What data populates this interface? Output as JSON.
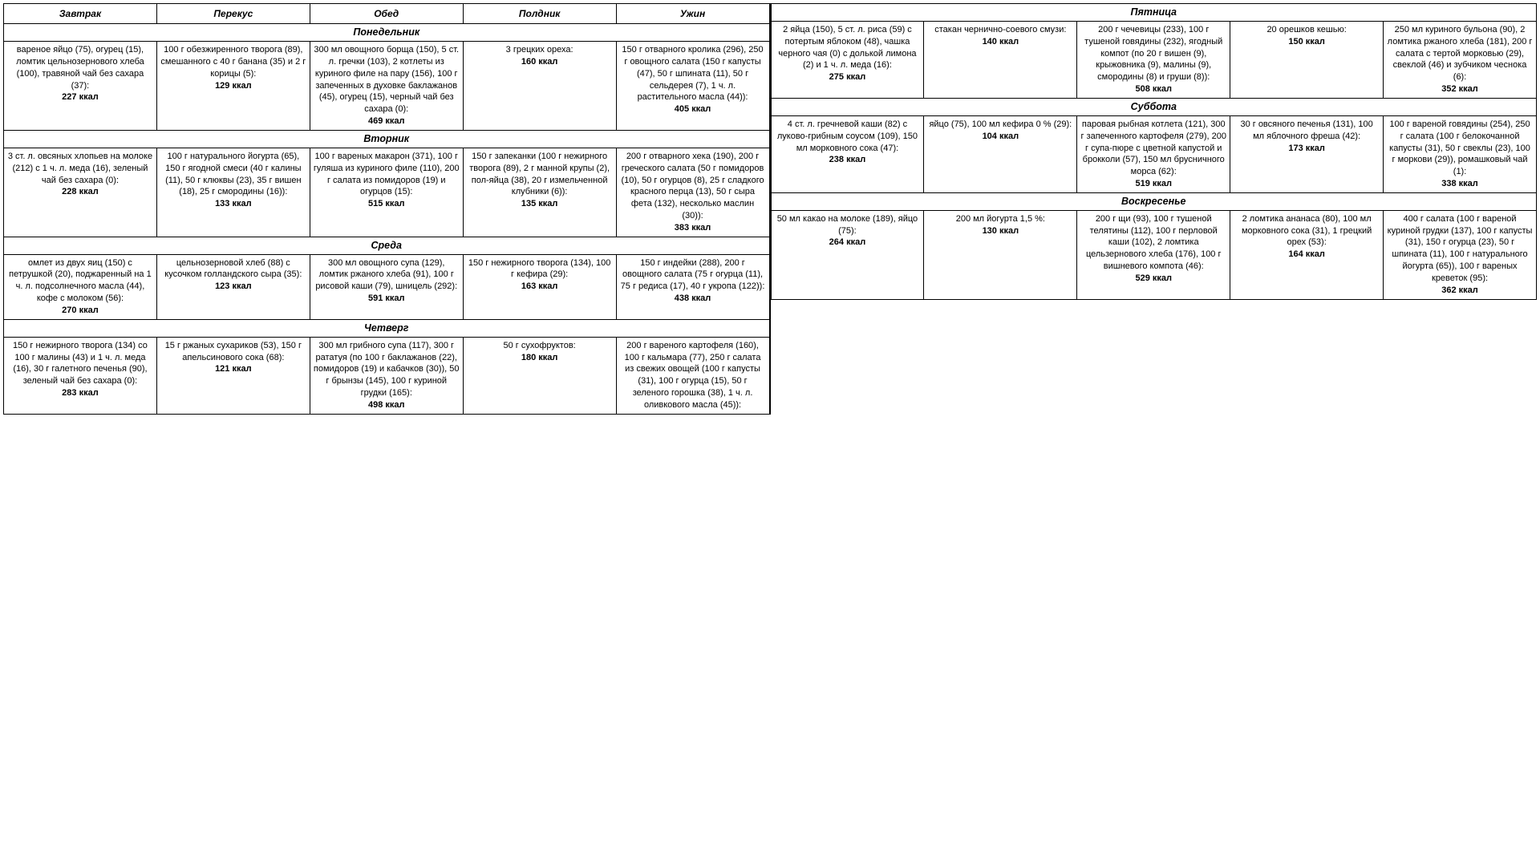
{
  "styling": {
    "font_family": "Arial",
    "base_font_size_pt": 8.5,
    "header_font_size_pt": 9,
    "day_font_size_pt": 9.5,
    "border_color": "#000000",
    "background_color": "#ffffff",
    "text_color": "#000000",
    "column_count": 5,
    "kcal_bold": true,
    "header_italic": true,
    "header_bold": true
  },
  "columns": [
    "Завтрак",
    "Перекус",
    "Обед",
    "Полдник",
    "Ужин"
  ],
  "left_days": [
    {
      "day": "Понедельник",
      "meals": [
        {
          "text": "вареное яйцо (75), огурец (15), ломтик цельнозернового хлеба (100), травяной чай без сахара (37):",
          "kcal": "227 ккал"
        },
        {
          "text": "100 г обезжиренного творога (89), смешанного с 40 г банана (35) и 2 г корицы (5):",
          "kcal": "129 ккал"
        },
        {
          "text": "300 мл овощного борща (150), 5 ст. л. гречки (103), 2 котлеты из куриного филе на пару (156), 100 г запеченных в духовке баклажанов (45), огурец (15), черный чай без сахара (0):",
          "kcal": "469 ккал"
        },
        {
          "text": "3 грецких ореха:",
          "kcal": "160 ккал"
        },
        {
          "text": "150 г отварного кролика (296), 250 г овощного салата (150 г капусты (47), 50 г шпината (11), 50 г сельдерея (7), 1 ч. л. растительного масла (44)):",
          "kcal": "405 ккал"
        }
      ]
    },
    {
      "day": "Вторник",
      "meals": [
        {
          "text": "3 ст. л. овсяных хлопьев на молоке (212) с 1 ч. л. меда (16), зеленый чай без сахара (0):",
          "kcal": "228 ккал"
        },
        {
          "text": "100 г натурального йогурта (65), 150 г ягодной смеси (40 г калины (11), 50 г клюквы (23), 35 г вишен (18), 25 г смородины (16)):",
          "kcal": "133 ккал"
        },
        {
          "text": "100 г вареных макарон (371), 100 г гуляша из куриного филе (110), 200 г салата из помидоров (19) и огурцов (15):",
          "kcal": "515 ккал"
        },
        {
          "text": "150 г запеканки (100 г нежирного творога (89), 2 г манной крупы (2), пол-яйца (38), 20 г измельченной клубники (6)):",
          "kcal": "135 ккал"
        },
        {
          "text": "200 г отварного хека (190), 200 г греческого салата (50 г помидоров (10), 50 г огурцов (8), 25 г сладкого красного перца (13), 50 г сыра фета (132), несколько маслин (30)):",
          "kcal": "383 ккал"
        }
      ]
    },
    {
      "day": "Среда",
      "meals": [
        {
          "text": "омлет из двух яиц (150) с петрушкой (20), поджаренный на 1 ч. л. подсолнечного масла (44), кофе с молоком (56):",
          "kcal": "270 ккал"
        },
        {
          "text": "цельнозерновой хлеб (88) с кусочком голландского сыра (35):",
          "kcal": "123 ккал"
        },
        {
          "text": "300 мл овощного супа (129), ломтик ржаного хлеба (91), 100 г рисовой каши (79), шницель (292):",
          "kcal": "591 ккал"
        },
        {
          "text": "150 г нежирного творога (134), 100 г кефира (29):",
          "kcal": "163 ккал"
        },
        {
          "text": "150 г индейки (288), 200 г овощного салата (75 г огурца (11), 75 г редиса (17), 40 г укропа (122)):",
          "kcal": "438 ккал"
        }
      ]
    },
    {
      "day": "Четверг",
      "meals": [
        {
          "text": "150 г нежирного творога (134) со 100 г малины (43) и 1 ч. л. меда (16), 30 г галетного печенья (90), зеленый чай без сахара (0):",
          "kcal": "283 ккал"
        },
        {
          "text": "15 г ржаных сухариков (53), 150 г апельсинового сока (68):",
          "kcal": "121 ккал"
        },
        {
          "text": "300 мл грибного супа (117), 300 г рататуя (по 100 г баклажанов (22), помидоров (19) и кабачков (30)), 50 г брынзы (145), 100 г куриной грудки (165):",
          "kcal": "498 ккал"
        },
        {
          "text": "50 г сухофруктов:",
          "kcal": "180 ккал"
        },
        {
          "text": "200 г вареного картофеля (160), 100 г кальмара (77), 250 г салата из свежих овощей (100 г капусты (31), 100 г огурца (15), 50 г зеленого горошка (38), 1 ч. л. оливкового масла (45)):",
          "kcal": ""
        }
      ]
    }
  ],
  "right_days": [
    {
      "day": "Пятница",
      "meals": [
        {
          "text": "2 яйца (150), 5 ст. л. риса (59) с потертым яблоком (48), чашка черного чая (0) с долькой лимона (2) и 1 ч. л. меда (16):",
          "kcal": "275 ккал"
        },
        {
          "text": "стакан чернично-соевого смузи:",
          "kcal": "140 ккал"
        },
        {
          "text": "200 г чечевицы (233), 100 г тушеной говядины (232), ягодный компот (по 20 г вишен (9), крыжовника (9), малины (9), смородины (8) и груши (8)):",
          "kcal": "508 ккал"
        },
        {
          "text": "20 орешков кешью:",
          "kcal": "150 ккал"
        },
        {
          "text": "250 мл куриного бульона (90), 2 ломтика ржаного хлеба (181), 200 г салата с тертой морковью (29), свеклой (46) и зубчиком чеснока (6):",
          "kcal": "352 ккал"
        }
      ]
    },
    {
      "day": "Суббота",
      "meals": [
        {
          "text": "4 ст. л. гречневой каши (82) с луково-грибным соусом (109), 150 мл морковного сока (47):",
          "kcal": "238 ккал"
        },
        {
          "text": "яйцо (75), 100 мл кефира 0 % (29):",
          "kcal": "104 ккал"
        },
        {
          "text": "паровая рыбная котлета (121), 300 г запеченного картофеля (279), 200 г супа-пюре с цветной капустой и брокколи (57), 150 мл брусничного морса (62):",
          "kcal": "519 ккал"
        },
        {
          "text": "30 г овсяного печенья (131), 100 мл яблочного фреша (42):",
          "kcal": "173 ккал"
        },
        {
          "text": "100 г вареной говядины (254), 250 г салата (100 г белокочанной капусты (31), 50 г свеклы (23), 100 г моркови (29)), ромашковый чай (1):",
          "kcal": "338 ккал"
        }
      ]
    },
    {
      "day": "Воскресенье",
      "meals": [
        {
          "text": "50 мл какао на молоке (189), яйцо (75):",
          "kcal": "264 ккал"
        },
        {
          "text": "200 мл йогурта 1,5 %:",
          "kcal": "130 ккал"
        },
        {
          "text": "200 г щи (93), 100 г тушеной телятины (112), 100 г перловой каши (102), 2 ломтика цельзернового хлеба (176), 100 г вишневого компота (46):",
          "kcal": "529 ккал"
        },
        {
          "text": "2 ломтика ананаса (80), 100 мл морковного сока (31), 1 грецкий орех (53):",
          "kcal": "164 ккал"
        },
        {
          "text": "400 г салата (100 г вареной куриной грудки (137), 100 г капусты (31), 150 г огурца (23), 50 г шпината (11), 100 г натурального йогурта (65)), 100 г вареных креветок (95):",
          "kcal": "362 ккал"
        }
      ]
    }
  ]
}
